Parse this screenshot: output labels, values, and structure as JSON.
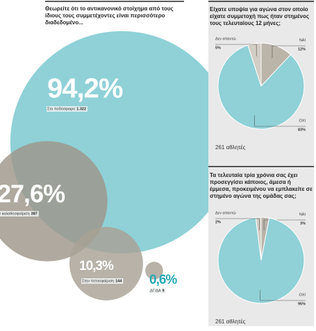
{
  "chart_data": [
    {
      "type": "bubble",
      "title": "Θεωρείτε ότι το αντικανονικό στοίχημα από τους ίδιους τους συμμετέχοντες είναι περισσότερο διαδεδομένο...",
      "categories": [
        "Στο ποδόσφαιρο",
        "Στην καλαθοσφαίριση",
        "Στην πετοσφαίριση",
        "ΔΓ/ΔΑ"
      ],
      "values": [
        94.2,
        27.6,
        10.3,
        0.6
      ],
      "value_labels": [
        "94,2%",
        "27,6%",
        "10,3%",
        "0,6%"
      ],
      "count_labels": [
        "1.322",
        "387",
        "144",
        "9"
      ],
      "colors": [
        "#8fd1d7",
        "#9d968a",
        "#a8a195",
        "#a8a195"
      ]
    },
    {
      "type": "pie",
      "title": "Είχατε υποψία για αγώνα στον οποίο είχατε συμμετοχή πως ήταν στημένος τους τελευταίους 12 μήνες;",
      "categories": [
        "ΝΑΙ",
        "ΟΧΙ",
        "Δεν απαντώ"
      ],
      "values": [
        12,
        83,
        5
      ],
      "value_labels": [
        "12%",
        "83%",
        "5%"
      ],
      "colors": [
        "#bab4a9",
        "#8fd1d7",
        "#d2cdc5"
      ],
      "footnote": "261 αθλητές"
    },
    {
      "type": "pie",
      "title": "Τα τελευταία τρία χρόνια σας έχει προσεγγίσει κάποιος, άμεσα ή έμμεσα, προκειμένου να εμπλακείτε σε στημένο αγώνα της ομάδας σας;",
      "categories": [
        "ΝΑΙ",
        "ΟΧΙ",
        "Δεν απαντώ"
      ],
      "values": [
        3,
        95,
        2
      ],
      "value_labels": [
        "3%",
        "95%",
        "2%"
      ],
      "colors": [
        "#bab4a9",
        "#8fd1d7",
        "#d2cdc5"
      ],
      "footnote": "261 αθλητές"
    }
  ]
}
